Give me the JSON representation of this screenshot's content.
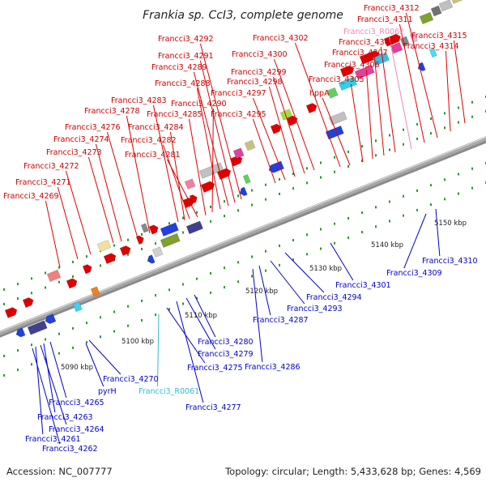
{
  "title": "Frankia sp. CcI3, complete genome",
  "footer": {
    "accession": "Accession: NC_007777",
    "stats": "Topology: circular; Length: 5,433,628 bp; Genes: 4,569"
  },
  "colors": {
    "forward_label": "#cc0000",
    "reverse_label": "#0000cc",
    "rna_label": "#33bbcc",
    "pseudo_label": "#ee88bb",
    "backbone": "#a8a8a8"
  },
  "ticks": [
    "5090 kbp",
    "5100 kbp",
    "5110 kbp",
    "5120 kbp",
    "5130 kbp",
    "5140 kbp",
    "5150 kbp"
  ],
  "forward_genes": [
    "Francci3_4269",
    "Francci3_4271",
    "Francci3_4272",
    "Francci3_4273",
    "Francci3_4274",
    "Francci3_4276",
    "Francci3_4278",
    "Francci3_4283",
    "Francci3_4284",
    "Francci3_4282",
    "Francci3_4281",
    "Francci3_4285",
    "Francci3_4290",
    "Francci3_4288",
    "Francci3_4289",
    "Francci3_4291",
    "Francci3_4292",
    "Francci3_4295",
    "Francci3_4297",
    "Francci3_4298",
    "Francci3_4299",
    "Francci3_4300",
    "Francci3_4302",
    "hppA",
    "Francci3_4305",
    "Francci3_4306",
    "Francci3_4307",
    "Francci3_4308",
    "Francci3_R0062",
    "Francci3_4311",
    "Francci3_4312",
    "Francci3_4314",
    "Francci3_4315"
  ],
  "reverse_genes": [
    "Francci3_4262",
    "Francci3_4261",
    "Francci3_4264",
    "Francci3_4263",
    "Francci3_4265",
    "pyrH",
    "Francci3_4270",
    "Francci3_R0061",
    "Francci3_4275",
    "Francci3_4277",
    "Francci3_4279",
    "Francci3_4280",
    "Francci3_4286",
    "Francci3_4287",
    "Francci3_4293",
    "Francci3_4294",
    "Francci3_4301",
    "Francci3_4309",
    "Francci3_4310"
  ]
}
